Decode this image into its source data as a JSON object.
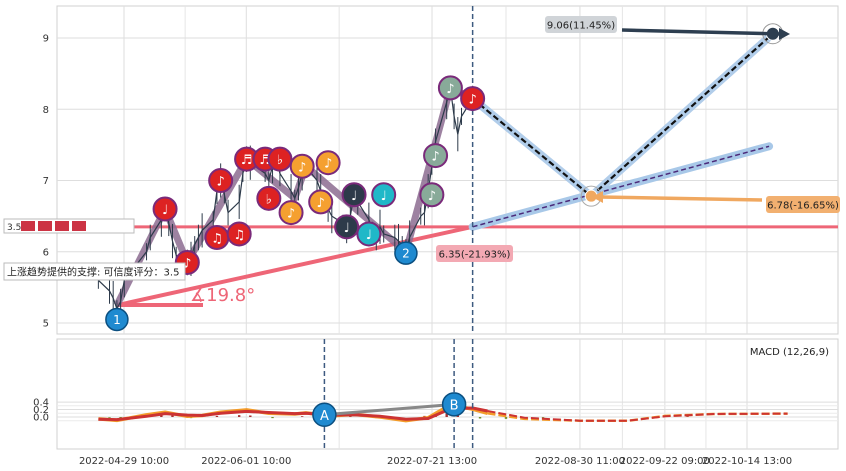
{
  "chart_data": [
    {
      "type": "line",
      "panel": "price",
      "ylim": [
        4.85,
        9.4
      ],
      "y_ticks": [
        "5",
        "6",
        "7",
        "8",
        "9"
      ],
      "grid": true,
      "colors": {
        "price_line": "#2d3a4a",
        "trend_band": "#8c6c90",
        "forecast_band": "#a8c8e8",
        "support_line": "#ee6677",
        "forecast_path": "#111111",
        "forecast_node": "#2d3e50",
        "lower_annotation": "#f0a860",
        "dashed_divider": "#3d5a80"
      },
      "price_series": [
        [
          "2022-04-22",
          5.6
        ],
        [
          "2022-04-25",
          5.45
        ],
        [
          "2022-04-26",
          5.35
        ],
        [
          "2022-04-27",
          5.2
        ],
        [
          "2022-04-28",
          5.3
        ],
        [
          "2022-04-29",
          5.6
        ],
        [
          "2022-05-05",
          6.0
        ],
        [
          "2022-05-06",
          6.2
        ],
        [
          "2022-05-09",
          6.45
        ],
        [
          "2022-05-10",
          6.6
        ],
        [
          "2022-05-11",
          6.4
        ],
        [
          "2022-05-12",
          6.15
        ],
        [
          "2022-05-13",
          5.95
        ],
        [
          "2022-05-16",
          5.85
        ],
        [
          "2022-05-17",
          5.9
        ],
        [
          "2022-05-18",
          6.1
        ],
        [
          "2022-05-19",
          6.2
        ],
        [
          "2022-05-20",
          6.3
        ],
        [
          "2022-05-23",
          6.45
        ],
        [
          "2022-05-24",
          6.85
        ],
        [
          "2022-05-25",
          7.0
        ],
        [
          "2022-05-26",
          6.8
        ],
        [
          "2022-05-27",
          6.55
        ],
        [
          "2022-05-30",
          6.7
        ],
        [
          "2022-05-31",
          7.1
        ],
        [
          "2022-06-01",
          7.3
        ],
        [
          "2022-06-02",
          7.25
        ],
        [
          "2022-06-06",
          7.1
        ],
        [
          "2022-06-07",
          7.0
        ],
        [
          "2022-06-08",
          7.2
        ],
        [
          "2022-06-09",
          7.3
        ],
        [
          "2022-06-10",
          7.1
        ],
        [
          "2022-06-13",
          6.85
        ],
        [
          "2022-06-14",
          6.75
        ],
        [
          "2022-06-15",
          6.9
        ],
        [
          "2022-06-16",
          7.1
        ],
        [
          "2022-06-17",
          7.2
        ],
        [
          "2022-06-20",
          7.0
        ],
        [
          "2022-06-21",
          6.85
        ],
        [
          "2022-06-22",
          6.7
        ],
        [
          "2022-06-23",
          6.6
        ],
        [
          "2022-06-24",
          6.5
        ],
        [
          "2022-06-27",
          6.4
        ],
        [
          "2022-06-28",
          6.3
        ],
        [
          "2022-06-29",
          6.5
        ],
        [
          "2022-06-30",
          6.8
        ],
        [
          "2022-07-01",
          6.7
        ],
        [
          "2022-07-04",
          6.45
        ],
        [
          "2022-07-05",
          6.3
        ],
        [
          "2022-07-06",
          6.2
        ],
        [
          "2022-07-07",
          6.35
        ],
        [
          "2022-07-08",
          6.25
        ],
        [
          "2022-07-11",
          6.2
        ],
        [
          "2022-07-12",
          6.15
        ],
        [
          "2022-07-13",
          6.1
        ],
        [
          "2022-07-14",
          6.0
        ],
        [
          "2022-07-15",
          6.2
        ],
        [
          "2022-07-18",
          6.5
        ],
        [
          "2022-07-19",
          6.55
        ],
        [
          "2022-07-20",
          6.85
        ],
        [
          "2022-07-21",
          7.2
        ],
        [
          "2022-07-22",
          7.55
        ],
        [
          "2022-07-25",
          8.1
        ],
        [
          "2022-07-26",
          8.3
        ],
        [
          "2022-07-27",
          7.9
        ],
        [
          "2022-07-28",
          7.65
        ],
        [
          "2022-07-29",
          7.9
        ],
        [
          "2022-08-01",
          8.15
        ]
      ],
      "forecast_path": [
        [
          "2022-08-01",
          8.15
        ],
        [
          "2022-09-02",
          6.78
        ],
        [
          "2022-10-21",
          9.06
        ]
      ],
      "trend_line": [
        [
          "2022-04-27",
          5.25
        ],
        [
          "2022-08-01",
          6.35
        ],
        [
          "2022-10-20",
          7.48
        ]
      ],
      "zigzag": [
        [
          "2022-04-27",
          5.25
        ],
        [
          "2022-05-10",
          6.6
        ],
        [
          "2022-05-16",
          5.85
        ],
        [
          "2022-06-01",
          7.3
        ],
        [
          "2022-06-14",
          6.75
        ],
        [
          "2022-06-17",
          7.2
        ],
        [
          "2022-07-14",
          6.0
        ],
        [
          "2022-07-26",
          8.3
        ],
        [
          "2022-08-01",
          8.15
        ]
      ],
      "support_level": 6.35,
      "vertical_marker_date": "2022-08-01",
      "note_markers": [
        {
          "date": "2022-05-10",
          "y": 6.6,
          "symbol": "♩",
          "color": "#dd2222"
        },
        {
          "date": "2022-05-16",
          "y": 5.85,
          "symbol": "♪",
          "color": "#dd2222"
        },
        {
          "date": "2022-05-25",
          "y": 7.0,
          "symbol": "♪",
          "color": "#dd2222"
        },
        {
          "date": "2022-05-24",
          "y": 6.2,
          "symbol": "♫",
          "color": "#dd2222"
        },
        {
          "date": "2022-05-30",
          "y": 6.25,
          "symbol": "♫",
          "color": "#dd2222"
        },
        {
          "date": "2022-06-01",
          "y": 7.3,
          "symbol": "♬",
          "color": "#dd2222"
        },
        {
          "date": "2022-06-06",
          "y": 7.3,
          "symbol": "♬",
          "color": "#dd2222"
        },
        {
          "date": "2022-06-07",
          "y": 6.75,
          "symbol": "♭",
          "color": "#dd2222"
        },
        {
          "date": "2022-06-10",
          "y": 7.3,
          "symbol": "♭",
          "color": "#dd2222"
        },
        {
          "date": "2022-06-13",
          "y": 6.55,
          "symbol": "♪",
          "color": "#f5a030"
        },
        {
          "date": "2022-06-16",
          "y": 7.2,
          "symbol": "♪",
          "color": "#f5a030"
        },
        {
          "date": "2022-06-21",
          "y": 6.7,
          "symbol": "♪",
          "color": "#f5a030"
        },
        {
          "date": "2022-06-23",
          "y": 7.25,
          "symbol": "♪",
          "color": "#f5a030"
        },
        {
          "date": "2022-06-28",
          "y": 6.35,
          "symbol": "♩",
          "color": "#2d3a4a"
        },
        {
          "date": "2022-06-30",
          "y": 6.8,
          "symbol": "♩",
          "color": "#2d3a4a"
        },
        {
          "date": "2022-07-04",
          "y": 6.25,
          "symbol": "♩",
          "color": "#20b8c8"
        },
        {
          "date": "2022-07-08",
          "y": 6.8,
          "symbol": "♩",
          "color": "#20b8c8"
        },
        {
          "date": "2022-07-21",
          "y": 6.8,
          "symbol": "♪",
          "color": "#88aa99"
        },
        {
          "date": "2022-07-22",
          "y": 7.35,
          "symbol": "♪",
          "color": "#88aa99"
        },
        {
          "date": "2022-07-26",
          "y": 8.3,
          "symbol": "♪",
          "color": "#88aa99"
        },
        {
          "date": "2022-08-01",
          "y": 8.15,
          "symbol": "♪",
          "color": "#dd2222"
        }
      ],
      "point_labels": [
        {
          "id": "p1",
          "text": "1",
          "date": "2022-04-27",
          "y": 5.05
        },
        {
          "id": "p2",
          "text": "2",
          "date": "2022-07-14",
          "y": 5.98
        }
      ],
      "annotations": {
        "upper_target": "9.06(11.45%)",
        "lower_target": "6.78(-16.65%)",
        "support_value": "6.35(-21.93%)",
        "angle": "∡19.8°",
        "support_note": "上涨趋势提供的支撑: 可信度评分：3.5",
        "score_note": "3.5"
      }
    },
    {
      "type": "line",
      "panel": "macd",
      "title": "MACD (12,26,9)",
      "ylim": [
        -0.15,
        0.42
      ],
      "y_ticks": [
        "0.0",
        "0.2",
        "0.4"
      ],
      "colors": {
        "dif": "#f39c2a",
        "dea": "#cc3333",
        "hist_up": "#a83232",
        "hist_down": "#6f8f2c",
        "divergence": "#888888"
      },
      "x_tick_labels": [
        "2022-04-29 10:00",
        "2022-06-01 10:00",
        "2022-07-21 13:00",
        "2022-08-30 11:00",
        "2022-09-22 09:00",
        "2022-10-14 13:00"
      ],
      "dif": [
        [
          "2022-04-22",
          -0.05
        ],
        [
          "2022-04-27",
          -0.09
        ],
        [
          "2022-05-05",
          0.06
        ],
        [
          "2022-05-10",
          0.13
        ],
        [
          "2022-05-16",
          0.02
        ],
        [
          "2022-05-20",
          0.04
        ],
        [
          "2022-05-25",
          0.13
        ],
        [
          "2022-06-01",
          0.19
        ],
        [
          "2022-06-07",
          0.1
        ],
        [
          "2022-06-14",
          0.08
        ],
        [
          "2022-06-17",
          0.11
        ],
        [
          "2022-06-24",
          0.03
        ],
        [
          "2022-06-30",
          0.07
        ],
        [
          "2022-07-07",
          0.0
        ],
        [
          "2022-07-14",
          -0.1
        ],
        [
          "2022-07-20",
          -0.02
        ],
        [
          "2022-07-26",
          0.33
        ],
        [
          "2022-08-01",
          0.21
        ],
        [
          "2022-08-05",
          0.1
        ],
        [
          "2022-08-15",
          -0.05
        ],
        [
          "2022-08-30",
          -0.1
        ],
        [
          "2022-09-12",
          -0.1
        ],
        [
          "2022-09-22",
          0.03
        ],
        [
          "2022-10-05",
          0.08
        ],
        [
          "2022-10-25",
          0.09
        ]
      ],
      "dea": [
        [
          "2022-04-22",
          -0.06
        ],
        [
          "2022-04-27",
          -0.07
        ],
        [
          "2022-05-05",
          0.02
        ],
        [
          "2022-05-10",
          0.09
        ],
        [
          "2022-05-16",
          0.05
        ],
        [
          "2022-05-20",
          0.04
        ],
        [
          "2022-05-25",
          0.1
        ],
        [
          "2022-06-01",
          0.15
        ],
        [
          "2022-06-07",
          0.12
        ],
        [
          "2022-06-14",
          0.09
        ],
        [
          "2022-06-17",
          0.1
        ],
        [
          "2022-06-24",
          0.05
        ],
        [
          "2022-06-30",
          0.06
        ],
        [
          "2022-07-07",
          0.02
        ],
        [
          "2022-07-14",
          -0.06
        ],
        [
          "2022-07-20",
          -0.04
        ],
        [
          "2022-07-26",
          0.22
        ],
        [
          "2022-08-01",
          0.24
        ],
        [
          "2022-08-05",
          0.16
        ],
        [
          "2022-08-15",
          -0.02
        ],
        [
          "2022-08-30",
          -0.1
        ],
        [
          "2022-09-12",
          -0.1
        ],
        [
          "2022-09-22",
          0.02
        ],
        [
          "2022-10-05",
          0.08
        ],
        [
          "2022-10-25",
          0.09
        ]
      ],
      "histogram": [
        [
          "2022-04-25",
          -0.02
        ],
        [
          "2022-04-28",
          -0.03
        ],
        [
          "2022-05-04",
          0.03
        ],
        [
          "2022-05-09",
          0.05
        ],
        [
          "2022-05-12",
          0.04
        ],
        [
          "2022-05-17",
          -0.03
        ],
        [
          "2022-05-24",
          0.03
        ],
        [
          "2022-05-30",
          0.05
        ],
        [
          "2022-06-02",
          0.04
        ],
        [
          "2022-06-08",
          -0.03
        ],
        [
          "2022-06-16",
          0.02
        ],
        [
          "2022-06-22",
          -0.02
        ],
        [
          "2022-06-29",
          0.02
        ],
        [
          "2022-07-06",
          -0.03
        ],
        [
          "2022-07-12",
          -0.04
        ],
        [
          "2022-07-19",
          0.03
        ],
        [
          "2022-07-22",
          0.08
        ],
        [
          "2022-07-25",
          0.1
        ],
        [
          "2022-07-28",
          0.05
        ],
        [
          "2022-08-03",
          -0.04
        ],
        [
          "2022-08-10",
          -0.05
        ],
        [
          "2022-08-20",
          -0.02
        ],
        [
          "2022-09-20",
          0.02
        ],
        [
          "2022-09-28",
          0.02
        ]
      ],
      "divergence_labels": [
        {
          "text": "A",
          "date": "2022-06-22",
          "y": 0.06
        },
        {
          "text": "B",
          "date": "2022-07-27",
          "y": 0.34
        }
      ]
    }
  ]
}
